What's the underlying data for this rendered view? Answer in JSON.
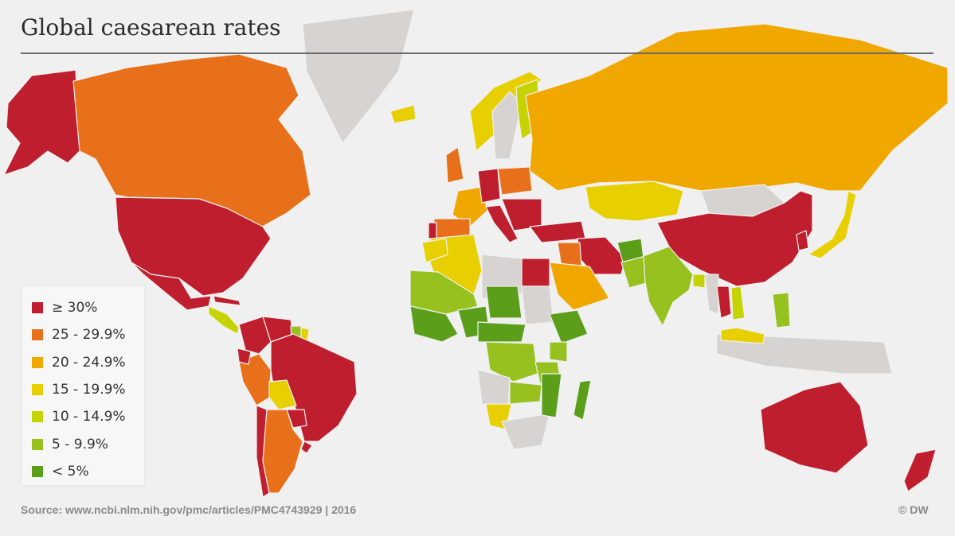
{
  "title": "Global caesarean rates",
  "legend": {
    "items": [
      {
        "label": "≥ 30%",
        "color": "#bf1e2e"
      },
      {
        "label": "25 - 29.9%",
        "color": "#e8701a"
      },
      {
        "label": "20 - 24.9%",
        "color": "#f0a800"
      },
      {
        "label": "15 - 19.9%",
        "color": "#e8d000"
      },
      {
        "label": "10 - 14.9%",
        "color": "#c5d400"
      },
      {
        "label": "5 - 9.9%",
        "color": "#96c11f"
      },
      {
        "label": "< 5%",
        "color": "#5a9e1a"
      }
    ]
  },
  "map": {
    "no_data_color": "#d6d3d0",
    "regions": [
      {
        "name": "Alaska",
        "category": 0
      },
      {
        "name": "Canada",
        "category": 1
      },
      {
        "name": "United States",
        "category": 0
      },
      {
        "name": "Mexico",
        "category": 0
      },
      {
        "name": "Central America",
        "category": 4
      },
      {
        "name": "Cuba",
        "category": 0
      },
      {
        "name": "Colombia",
        "category": 0
      },
      {
        "name": "Venezuela",
        "category": 0
      },
      {
        "name": "Guyana",
        "category": 5
      },
      {
        "name": "Suriname",
        "category": 3
      },
      {
        "name": "Peru",
        "category": 1
      },
      {
        "name": "Ecuador",
        "category": 0
      },
      {
        "name": "Brazil",
        "category": 0
      },
      {
        "name": "Bolivia",
        "category": 3
      },
      {
        "name": "Paraguay",
        "category": 0
      },
      {
        "name": "Chile",
        "category": 0
      },
      {
        "name": "Argentina",
        "category": 1
      },
      {
        "name": "Uruguay",
        "category": 0
      },
      {
        "name": "Greenland",
        "category": null
      },
      {
        "name": "Iceland",
        "category": 3
      },
      {
        "name": "Norway",
        "category": 3
      },
      {
        "name": "Sweden",
        "category": null
      },
      {
        "name": "Finland",
        "category": 4
      },
      {
        "name": "United Kingdom",
        "category": 1
      },
      {
        "name": "France",
        "category": 2
      },
      {
        "name": "Spain",
        "category": 1
      },
      {
        "name": "Portugal",
        "category": 0
      },
      {
        "name": "Germany",
        "category": 0
      },
      {
        "name": "Italy",
        "category": 0
      },
      {
        "name": "Poland",
        "category": 1
      },
      {
        "name": "Balkans",
        "category": 0
      },
      {
        "name": "Turkey",
        "category": 0
      },
      {
        "name": "Russia",
        "category": 2
      },
      {
        "name": "Kazakhstan",
        "category": 3
      },
      {
        "name": "Mongolia",
        "category": null
      },
      {
        "name": "China",
        "category": 0
      },
      {
        "name": "Japan",
        "category": 3
      },
      {
        "name": "Korea",
        "category": 0
      },
      {
        "name": "Iran",
        "category": 0
      },
      {
        "name": "Iraq",
        "category": 1
      },
      {
        "name": "Saudi Arabia",
        "category": 2
      },
      {
        "name": "Afghanistan",
        "category": 6
      },
      {
        "name": "Pakistan",
        "category": 5
      },
      {
        "name": "India",
        "category": 5
      },
      {
        "name": "Bangladesh",
        "category": 4
      },
      {
        "name": "Myanmar",
        "category": null
      },
      {
        "name": "Thailand",
        "category": 0
      },
      {
        "name": "Vietnam",
        "category": 4
      },
      {
        "name": "Philippines",
        "category": 5
      },
      {
        "name": "Indonesia",
        "category": null
      },
      {
        "name": "Malaysia",
        "category": 3
      },
      {
        "name": "Egypt",
        "category": 0
      },
      {
        "name": "Libya",
        "category": null
      },
      {
        "name": "Algeria",
        "category": 3
      },
      {
        "name": "Morocco",
        "category": 3
      },
      {
        "name": "Sahel",
        "category": 5
      },
      {
        "name": "West Africa",
        "category": 6
      },
      {
        "name": "Nigeria",
        "category": 6
      },
      {
        "name": "Chad",
        "category": 6
      },
      {
        "name": "Sudan",
        "category": null
      },
      {
        "name": "Ethiopia",
        "category": 6
      },
      {
        "name": "Kenya",
        "category": 5
      },
      {
        "name": "Central Africa",
        "category": 6
      },
      {
        "name": "DR Congo",
        "category": 5
      },
      {
        "name": "Tanzania",
        "category": 5
      },
      {
        "name": "Angola",
        "category": null
      },
      {
        "name": "Zambia",
        "category": 5
      },
      {
        "name": "Namibia",
        "category": 3
      },
      {
        "name": "South Africa",
        "category": null
      },
      {
        "name": "Mozambique",
        "category": 6
      },
      {
        "name": "Madagascar",
        "category": 6
      },
      {
        "name": "Australia",
        "category": 0
      },
      {
        "name": "New Zealand",
        "category": 0
      }
    ]
  },
  "source": "Source: www.ncbi.nlm.nih.gov/pmc/articles/PMC4743929 | 2016",
  "credit": "© DW"
}
